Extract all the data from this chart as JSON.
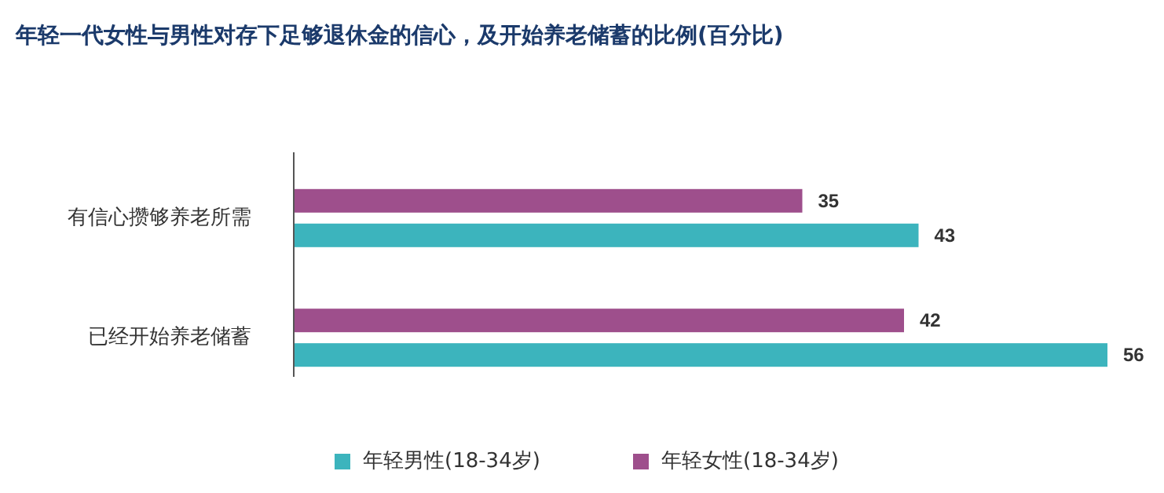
{
  "chart_data": {
    "type": "bar",
    "orientation": "horizontal",
    "title": "年轻一代女性与男性对存下足够退休金的信心，及开始养老储蓄的比例(百分比)",
    "categories": [
      "有信心攒够养老所需",
      "已经开始养老储蓄"
    ],
    "series": [
      {
        "name": "年轻男性(18-34岁)",
        "color": "#3cb4bd",
        "values": [
          43,
          56
        ]
      },
      {
        "name": "年轻女性(18-34岁)",
        "color": "#9e4f8c",
        "values": [
          35,
          42
        ]
      }
    ],
    "data_labels": true,
    "legend": "bottom"
  }
}
